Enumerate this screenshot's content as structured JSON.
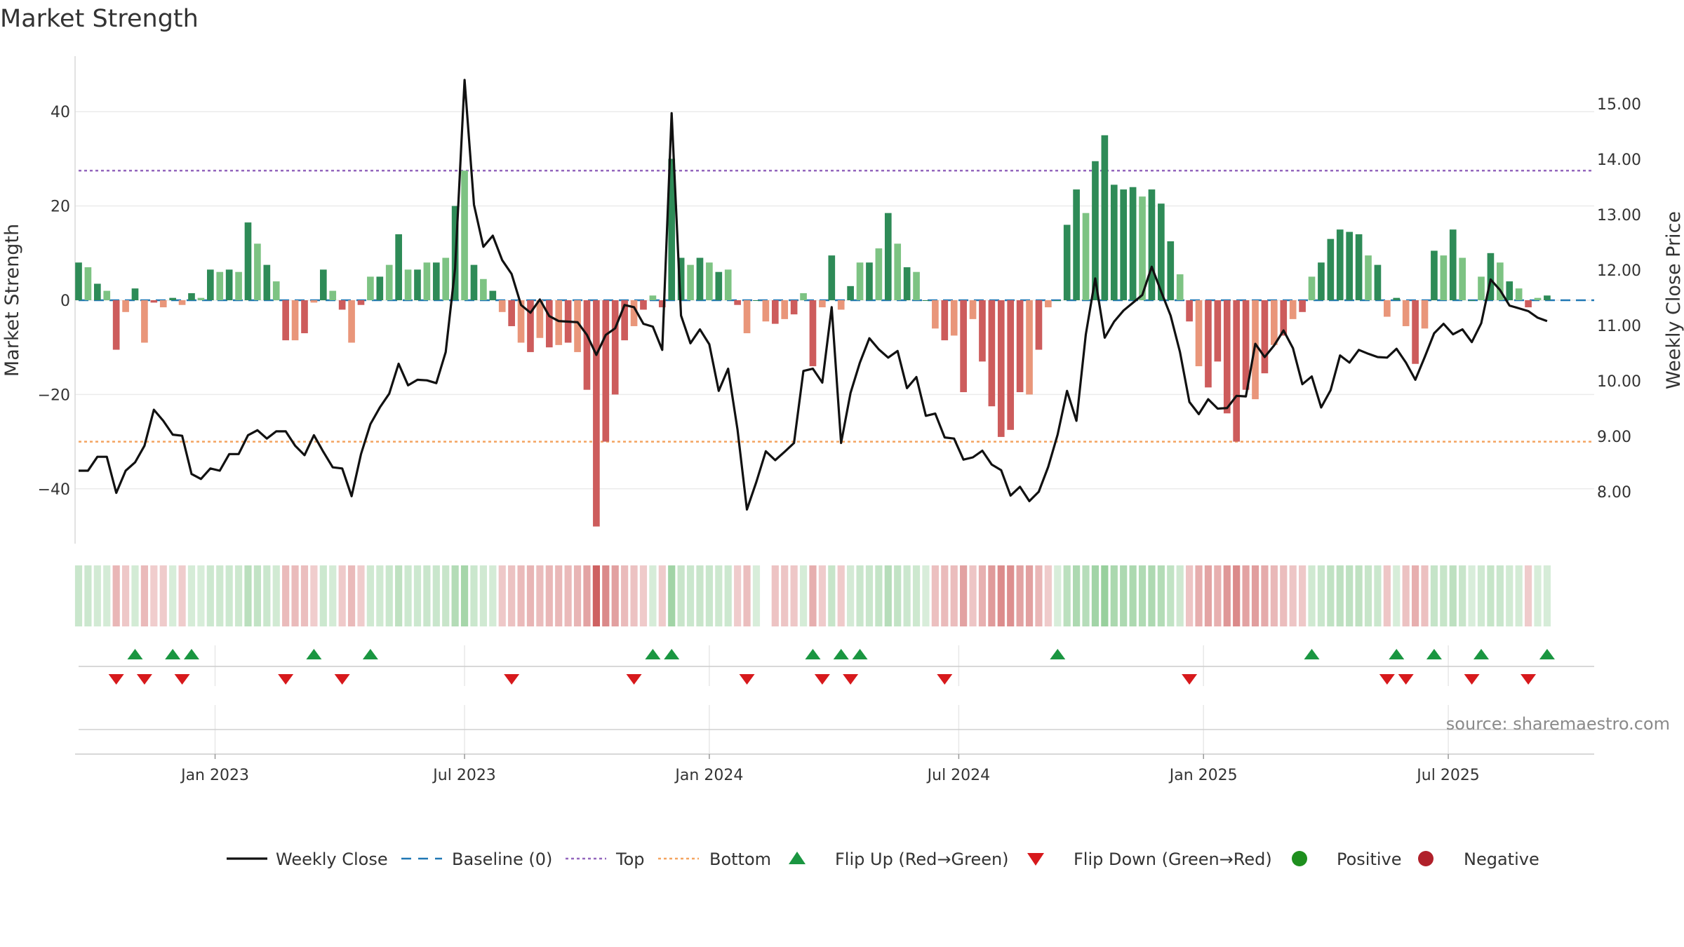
{
  "chart_data": {
    "type": "bar",
    "title": "Market Strength",
    "source": "source: sharemaestro.com",
    "ylabel": "Market Strength",
    "y2label": "Weekly Close Price",
    "ylim": [
      -52,
      52
    ],
    "y2lim": [
      7.2,
      15.6
    ],
    "yticks": [
      -40,
      -20,
      0,
      20,
      40
    ],
    "yticklabels": [
      "−40",
      "−20",
      "0",
      "20",
      "40"
    ],
    "y2ticks": [
      8,
      9,
      10,
      11,
      12,
      13,
      14,
      15
    ],
    "y2ticklabels": [
      "8.00",
      "9.00",
      "10.00",
      "11.00",
      "12.00",
      "13.00",
      "14.00",
      "15.00"
    ],
    "top_line": 27.5,
    "bottom_line": -30,
    "x_start_week": 0,
    "x_end_week": 161,
    "xticks": [
      {
        "week": 14.5,
        "label": "Jan 2023"
      },
      {
        "week": 41,
        "label": "Jul 2023"
      },
      {
        "week": 67,
        "label": "Jan 2024"
      },
      {
        "week": 93.5,
        "label": "Jul 2024"
      },
      {
        "week": 119.5,
        "label": "Jan 2025"
      },
      {
        "week": 145.5,
        "label": "Jul 2025"
      }
    ],
    "strength": [
      8,
      7,
      3.5,
      2,
      -10.5,
      -2.5,
      2.5,
      -9,
      -0.5,
      -1.5,
      0.5,
      -1,
      1.5,
      0.5,
      6.5,
      6,
      6.5,
      6,
      16.5,
      12,
      7.5,
      4,
      -8.5,
      -8.5,
      -7,
      -0.5,
      6.5,
      2,
      -2,
      -9,
      -1,
      5,
      5,
      7.5,
      14,
      6.5,
      6.5,
      8,
      8,
      9,
      20,
      27.5,
      7.5,
      4.5,
      2,
      -2.5,
      -5.5,
      -9,
      -11,
      -8,
      -10,
      -9.5,
      -9,
      -11,
      -19,
      -48,
      -30,
      -20,
      -8.5,
      -5.5,
      -2,
      1,
      -1.5,
      30,
      9,
      7.5,
      9,
      8,
      6,
      6.5,
      -1,
      -7,
      0,
      -4.5,
      -5,
      -4,
      -3,
      1.5,
      -14,
      -1.5,
      9.5,
      -2,
      3,
      8,
      8,
      11,
      18.5,
      12,
      7,
      6,
      0,
      -6,
      -8.5,
      -7.5,
      -19.5,
      -4,
      -13,
      -22.5,
      -29,
      -27.5,
      -19.5,
      -20,
      -10.5,
      -1.5,
      0,
      16,
      23.5,
      18.5,
      29.5,
      35,
      24.5,
      23.5,
      24,
      22,
      23.5,
      20.5,
      12.5,
      5.5,
      -4.5,
      -14,
      -18.5,
      -13,
      -24,
      -30,
      -19,
      -21,
      -15.5,
      -9.5,
      -7.5,
      -4,
      -2.5,
      5,
      8,
      13,
      15,
      14.5,
      14,
      9.5,
      7.5,
      -3.5,
      0.5,
      -5.5,
      -13.5,
      -6,
      10.5,
      9.5,
      15,
      9,
      0,
      5,
      10,
      8,
      4,
      2.5,
      -1.5,
      0.5,
      1
    ],
    "close": [
      8.38,
      8.38,
      8.63,
      8.63,
      7.98,
      8.38,
      8.53,
      8.83,
      9.48,
      9.28,
      9.03,
      9.01,
      8.32,
      8.23,
      8.42,
      8.38,
      8.68,
      8.68,
      9.02,
      9.11,
      8.96,
      9.09,
      9.09,
      8.83,
      8.66,
      9.02,
      8.72,
      8.44,
      8.42,
      7.92,
      8.68,
      9.22,
      9.52,
      9.77,
      10.31,
      9.92,
      10.02,
      10.01,
      9.96,
      10.52,
      12.03,
      15.43,
      13.18,
      12.42,
      12.62,
      12.18,
      11.93,
      11.37,
      11.23,
      11.47,
      11.17,
      11.08,
      11.07,
      11.06,
      10.83,
      10.47,
      10.83,
      10.95,
      11.37,
      11.33,
      11.03,
      10.98,
      10.56,
      14.83,
      11.18,
      10.68,
      10.93,
      10.66,
      9.82,
      10.22,
      9.12,
      7.68,
      8.18,
      8.73,
      8.57,
      8.72,
      8.88,
      10.18,
      10.22,
      9.97,
      11.33,
      8.88,
      9.78,
      10.33,
      10.77,
      10.57,
      10.42,
      10.54,
      9.87,
      10.07,
      9.37,
      9.41,
      8.98,
      8.96,
      8.58,
      8.62,
      8.74,
      8.49,
      8.39,
      7.93,
      8.09,
      7.83,
      8.0,
      8.45,
      9.03,
      9.82,
      9.28,
      10.84,
      11.85,
      10.78,
      11.07,
      11.27,
      11.41,
      11.55,
      12.06,
      11.61,
      11.18,
      10.52,
      9.62,
      9.4,
      9.67,
      9.5,
      9.51,
      9.73,
      9.72,
      10.67,
      10.43,
      10.64,
      10.91,
      10.59,
      9.94,
      10.08,
      9.52,
      9.83,
      10.46,
      10.33,
      10.56,
      10.49,
      10.43,
      10.42,
      10.58,
      10.33,
      10.02,
      10.43,
      10.86,
      11.03,
      10.84,
      10.93,
      10.7,
      11.04,
      11.83,
      11.64,
      11.36,
      11.31,
      11.26,
      11.14,
      11.08
    ],
    "flip_up_weeks": [
      6,
      10,
      12,
      25,
      31,
      61,
      63,
      78,
      81,
      83,
      104,
      131,
      140,
      144,
      149,
      156
    ],
    "flip_down_weeks": [
      4,
      7,
      11,
      22,
      28,
      46,
      59,
      71,
      79,
      82,
      92,
      118,
      139,
      141,
      148,
      154
    ],
    "strip_gap_weeks": [
      73
    ],
    "legend": [
      {
        "key": "close",
        "label": "Weekly Close"
      },
      {
        "key": "baseline",
        "label": "Baseline (0)"
      },
      {
        "key": "top",
        "label": "Top"
      },
      {
        "key": "bottom",
        "label": "Bottom"
      },
      {
        "key": "flip_up",
        "label": "Flip Up (Red→Green)"
      },
      {
        "key": "flip_down",
        "label": "Flip Down (Green→Red)"
      },
      {
        "key": "positive",
        "label": "Positive"
      },
      {
        "key": "negative",
        "label": "Negative"
      }
    ],
    "colors": {
      "pos_strong": "#2e8b57",
      "pos_weak": "#7dc383",
      "neg_strong": "#cd5c5c",
      "neg_weak": "#e9967a",
      "close_line": "#111111",
      "baseline": "#1f77b4",
      "top_line": "#9467bd",
      "bottom_line": "#f4a460",
      "flip_up": "#1a9641",
      "flip_down": "#d7191c",
      "positive_dot": "#1e8f1e",
      "negative_dot": "#b0202a"
    }
  }
}
